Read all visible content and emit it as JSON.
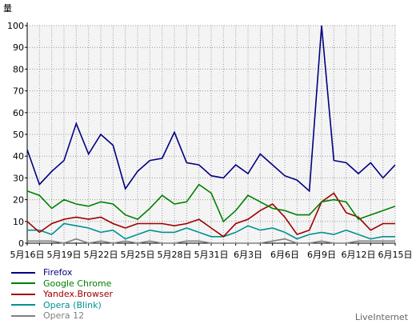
{
  "colors": {
    "plot_background": "#f4f4f4",
    "grid": "#9a9a9a"
  },
  "chart_data": {
    "type": "line",
    "y_axis_unit": "量",
    "ylim": [
      0,
      100
    ],
    "yticks": [
      0,
      10,
      20,
      30,
      40,
      50,
      60,
      70,
      80,
      90,
      100
    ],
    "x_tick_labels": [
      "5月16日",
      "5月19日",
      "5月22日",
      "5月25日",
      "5月28日",
      "5月31日",
      "6月3日",
      "6月6日",
      "6月9日",
      "6月12日",
      "6月15日"
    ],
    "grid": true,
    "legend_position": "bottom-left",
    "series": [
      {
        "name": "Firefox",
        "color": "#000080",
        "values": [
          43,
          27,
          33,
          38,
          55,
          41,
          50,
          45,
          25,
          33,
          38,
          39,
          51,
          37,
          36,
          31,
          30,
          36,
          32,
          41,
          36,
          31,
          29,
          24,
          100,
          38,
          37,
          32,
          37,
          30,
          36
        ]
      },
      {
        "name": "Google Chrome",
        "color": "#008000",
        "values": [
          24,
          22,
          16,
          20,
          18,
          17,
          19,
          18,
          13,
          11,
          16,
          22,
          18,
          19,
          27,
          23,
          10,
          15,
          22,
          19,
          16,
          15,
          13,
          13,
          19,
          20,
          19,
          11,
          13,
          15,
          17
        ]
      },
      {
        "name": "Yandex.Browser",
        "color": "#a00000",
        "values": [
          10,
          5,
          9,
          11,
          12,
          11,
          12,
          9,
          7,
          9,
          9,
          9,
          8,
          9,
          11,
          7,
          3,
          9,
          11,
          15,
          18,
          12,
          4,
          6,
          19,
          23,
          14,
          12,
          6,
          9,
          9
        ]
      },
      {
        "name": "Opera (Blink)",
        "color": "#009090",
        "values": [
          6,
          6,
          4,
          9,
          8,
          7,
          5,
          6,
          2,
          4,
          6,
          5,
          5,
          7,
          5,
          3,
          3,
          5,
          8,
          6,
          7,
          5,
          2,
          4,
          5,
          4,
          6,
          4,
          2,
          3,
          3
        ]
      },
      {
        "name": "Opera 12",
        "color": "#808080",
        "values": [
          1,
          1,
          1,
          0,
          2,
          0,
          1,
          0,
          1,
          0,
          1,
          0,
          0,
          1,
          1,
          0,
          0,
          0,
          0,
          0,
          1,
          2,
          0,
          0,
          1,
          0,
          0,
          1,
          1,
          1,
          1
        ]
      }
    ]
  },
  "credit": "LiveInternet"
}
